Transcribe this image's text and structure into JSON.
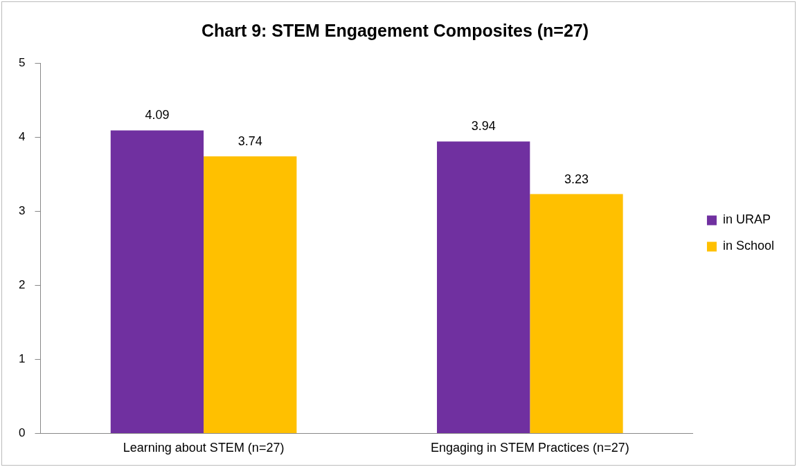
{
  "chart_data": {
    "type": "bar",
    "title": "Chart 9: STEM Engagement Composites (n=27)",
    "categories": [
      "Learning about STEM (n=27)",
      "Engaging in STEM Practices (n=27)"
    ],
    "series": [
      {
        "name": "in URAP",
        "color": "#7030a0",
        "values": [
          4.09,
          3.94
        ]
      },
      {
        "name": "in School",
        "color": "#ffc000",
        "values": [
          3.74,
          3.23
        ]
      }
    ],
    "ylim": [
      0,
      5
    ],
    "yticks": [
      0,
      1,
      2,
      3,
      4,
      5
    ],
    "grid": false,
    "legend": "right",
    "data_labels": true
  }
}
